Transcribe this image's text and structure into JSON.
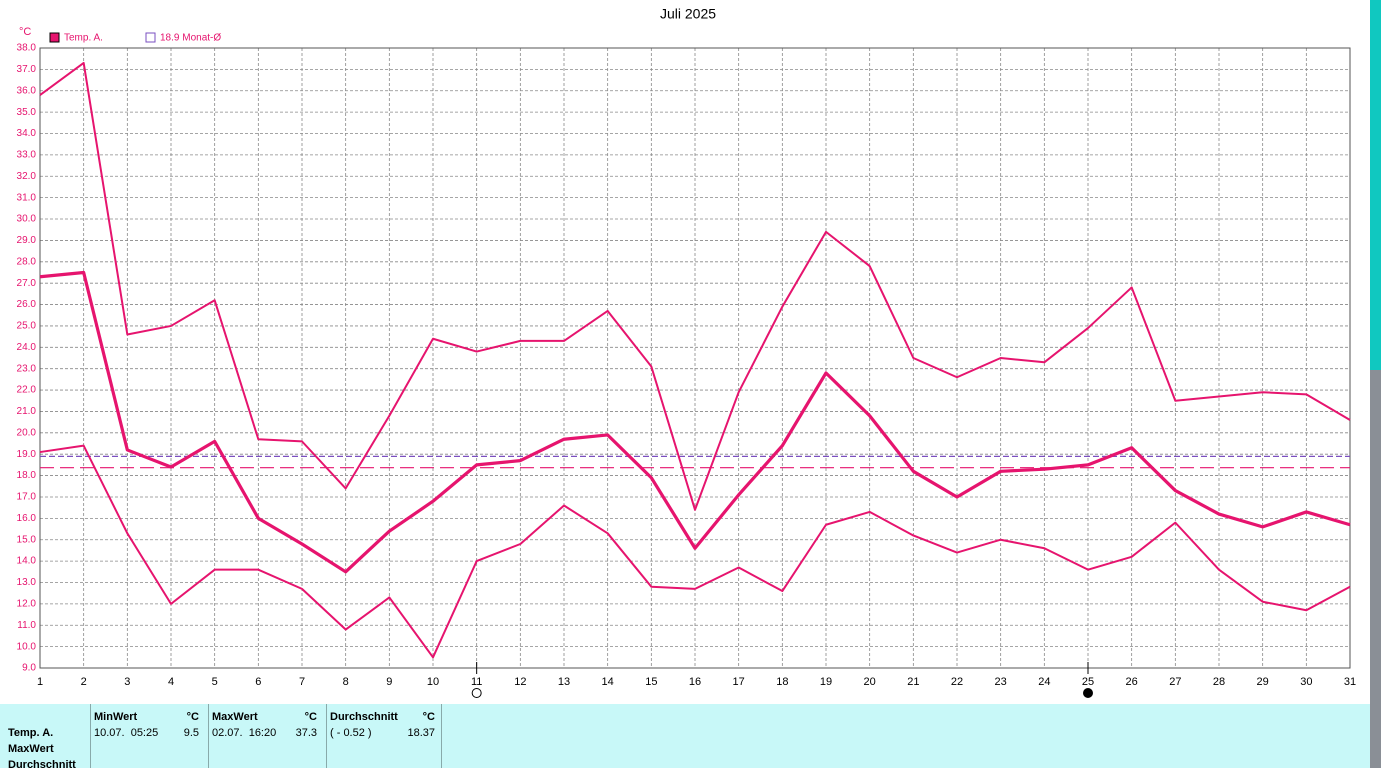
{
  "chart_data": {
    "type": "line",
    "title": "Juli 2025",
    "y_unit": "°C",
    "x": [
      1,
      2,
      3,
      4,
      5,
      6,
      7,
      8,
      9,
      10,
      11,
      12,
      13,
      14,
      15,
      16,
      17,
      18,
      19,
      20,
      21,
      22,
      23,
      24,
      25,
      26,
      27,
      28,
      29,
      30,
      31
    ],
    "xlim": [
      1,
      31
    ],
    "xticks": [
      1,
      2,
      3,
      4,
      5,
      6,
      7,
      8,
      9,
      10,
      11,
      12,
      13,
      14,
      15,
      16,
      17,
      18,
      19,
      20,
      21,
      22,
      23,
      24,
      25,
      26,
      27,
      28,
      29,
      30,
      31
    ],
    "ylim": [
      9,
      38
    ],
    "yticks": [
      {
        "value": 9,
        "label": "9.0"
      },
      {
        "value": 10,
        "label": "10.0"
      },
      {
        "value": 11,
        "label": "11.0"
      },
      {
        "value": 12,
        "label": "12.0"
      },
      {
        "value": 13,
        "label": "13.0"
      },
      {
        "value": 14,
        "label": "14.0"
      },
      {
        "value": 15,
        "label": "15.0"
      },
      {
        "value": 16,
        "label": "16.0"
      },
      {
        "value": 17,
        "label": "17.0"
      },
      {
        "value": 18,
        "label": "18.0"
      },
      {
        "value": 19,
        "label": "19.0"
      },
      {
        "value": 20,
        "label": "20.0"
      },
      {
        "value": 21,
        "label": "21.0"
      },
      {
        "value": 22,
        "label": "22.0"
      },
      {
        "value": 23,
        "label": "23.0"
      },
      {
        "value": 24,
        "label": "24.0"
      },
      {
        "value": 25,
        "label": "25.0"
      },
      {
        "value": 26,
        "label": "26.0"
      },
      {
        "value": 27,
        "label": "27.0"
      },
      {
        "value": 28,
        "label": "28.0"
      },
      {
        "value": 29,
        "label": "29.0"
      },
      {
        "value": 30,
        "label": "30.0"
      },
      {
        "value": 31,
        "label": "31.0"
      },
      {
        "value": 32,
        "label": "32.0"
      },
      {
        "value": 33,
        "label": "33.0"
      },
      {
        "value": 34,
        "label": "34.0"
      },
      {
        "value": 35,
        "label": "35.0"
      },
      {
        "value": 36,
        "label": "36.0"
      },
      {
        "value": 37,
        "label": "37.0"
      },
      {
        "value": 38,
        "label": "38.0"
      }
    ],
    "grid": true,
    "series": [
      {
        "color": "#e6146e",
        "width": 2,
        "values": [
          35.8,
          37.3,
          24.6,
          25.0,
          26.2,
          19.7,
          19.6,
          17.4,
          20.8,
          24.4,
          23.8,
          24.3,
          24.3,
          25.7,
          23.1,
          16.4,
          21.9,
          25.9,
          29.4,
          27.8,
          23.5,
          22.6,
          23.5,
          23.3,
          24.9,
          26.8,
          21.5,
          21.7,
          21.9,
          21.8,
          20.6
        ]
      },
      {
        "name": "Temp. A.",
        "color": "#e6146e",
        "width": 3.2,
        "values": [
          27.3,
          27.5,
          19.2,
          18.4,
          19.6,
          16.0,
          14.8,
          13.5,
          15.4,
          16.8,
          18.5,
          18.7,
          19.7,
          19.9,
          17.9,
          14.6,
          17.1,
          19.4,
          22.8,
          20.8,
          18.2,
          17.0,
          18.2,
          18.3,
          18.5,
          19.3,
          17.3,
          16.2,
          15.6,
          16.3,
          15.7
        ]
      },
      {
        "color": "#e6146e",
        "width": 2,
        "values": [
          19.1,
          19.4,
          15.3,
          12.0,
          13.6,
          13.6,
          12.7,
          10.8,
          12.3,
          9.5,
          14.0,
          14.8,
          16.6,
          15.3,
          12.8,
          12.7,
          13.7,
          12.6,
          15.7,
          16.3,
          15.2,
          14.4,
          15.0,
          14.6,
          13.6,
          14.2,
          15.8,
          13.6,
          12.1,
          11.7,
          12.8
        ]
      }
    ],
    "reference_lines": [
      {
        "value": 18.9,
        "label": "18.9 Monat-Ø",
        "color": "#7a4fc0",
        "dash": "6 3"
      },
      {
        "value": 18.37,
        "color": "#e6146e",
        "dash": "14 6"
      }
    ],
    "moon_phases": [
      {
        "x": 11,
        "filled": false
      },
      {
        "x": 25,
        "filled": true
      }
    ]
  },
  "table": {
    "row_labels": [
      "Temp. A.",
      "MaxWert",
      "Durchschnitt"
    ],
    "columns": [
      {
        "header": "MinWert",
        "unit": "°C",
        "cells": [
          "10.07.  05:25",
          "9.5"
        ]
      },
      {
        "header": "MaxWert",
        "unit": "°C",
        "cells": [
          "02.07.  16:20",
          "37.3"
        ]
      },
      {
        "header": "Durchschnitt",
        "unit": "°C",
        "cells": [
          "( - 0.52 )",
          "18.37"
        ]
      }
    ]
  }
}
